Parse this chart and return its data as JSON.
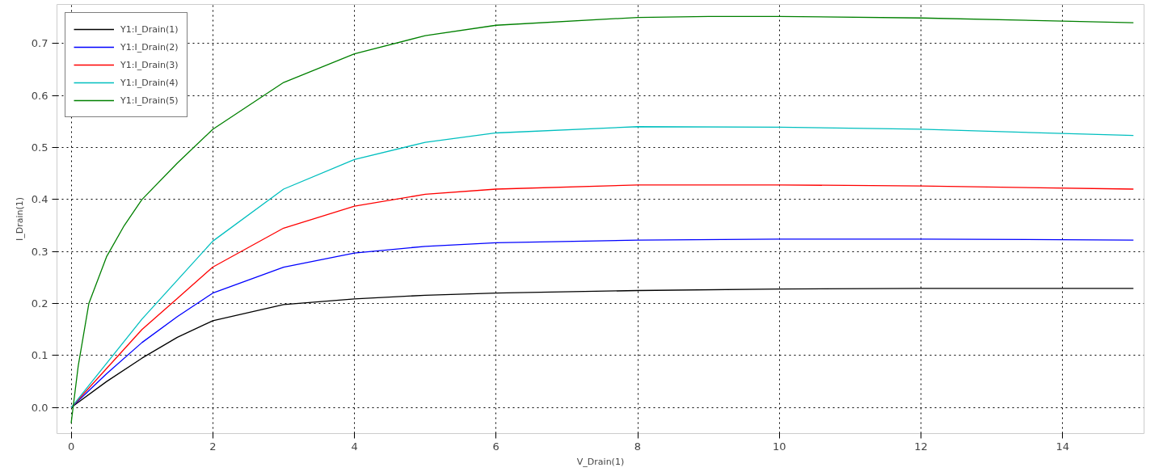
{
  "chart_data": {
    "type": "line",
    "xlabel": "V_Drain(1)",
    "ylabel": "I_Drain(1)",
    "xlim": [
      -0.2,
      15.15
    ],
    "ylim": [
      -0.05,
      0.775
    ],
    "xticks": [
      0,
      2,
      4,
      6,
      8,
      10,
      12,
      14
    ],
    "yticks": [
      {
        "value": 0,
        "label": "0.0"
      },
      0.1,
      0.2,
      0.3,
      0.4,
      0.5,
      0.6,
      0.7
    ],
    "grid": true,
    "legend": "top left",
    "line_style": "solid",
    "x": [
      0,
      0.5,
      1,
      1.5,
      2,
      3,
      4,
      5,
      6,
      8,
      10,
      12,
      15
    ],
    "series": [
      {
        "name": "Y1:I_Drain(1)",
        "color": "#000000",
        "values": [
          0,
          0.05,
          0.095,
          0.135,
          0.167,
          0.198,
          0.209,
          0.216,
          0.22,
          0.225,
          0.228,
          0.229,
          0.229
        ]
      },
      {
        "name": "Y1:I_Drain(2)",
        "color": "#0000ff",
        "values": [
          0,
          0.065,
          0.125,
          0.175,
          0.22,
          0.27,
          0.297,
          0.31,
          0.317,
          0.322,
          0.324,
          0.324,
          0.322
        ]
      },
      {
        "name": "Y1:I_Drain(3)",
        "color": "#ff0000",
        "values": [
          0,
          0.075,
          0.15,
          0.21,
          0.27,
          0.345,
          0.387,
          0.41,
          0.42,
          0.428,
          0.428,
          0.426,
          0.42
        ]
      },
      {
        "name": "Y1:I_Drain(4)",
        "color": "#00bfbf",
        "values": [
          0,
          0.085,
          0.17,
          0.245,
          0.32,
          0.42,
          0.477,
          0.51,
          0.528,
          0.54,
          0.539,
          0.535,
          0.523
        ]
      },
      {
        "name": "Y1:I_Drain(5)",
        "color": "#008000",
        "x": [
          0,
          0.1,
          0.25,
          0.5,
          0.75,
          1,
          1.5,
          2,
          3,
          4,
          5,
          6,
          8,
          9,
          10,
          12,
          14,
          15
        ],
        "values": [
          -0.03,
          0.08,
          0.2,
          0.29,
          0.35,
          0.4,
          0.47,
          0.535,
          0.625,
          0.68,
          0.715,
          0.735,
          0.75,
          0.752,
          0.752,
          0.749,
          0.743,
          0.74
        ]
      }
    ]
  }
}
